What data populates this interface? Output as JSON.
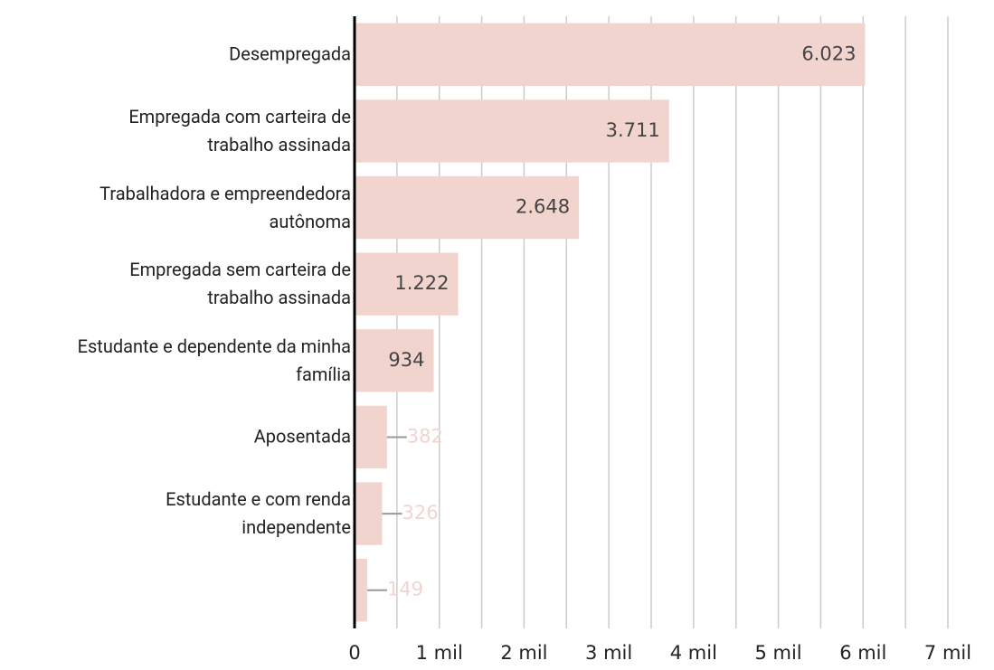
{
  "chart_data": {
    "type": "barh",
    "categories": [
      "Desempregada",
      "Empregada com carteira de\ntrabalho assinada",
      "Trabalhadora e empreendedora\nautônoma",
      "Empregada sem carteira de\ntrabalho assinada",
      "Estudante e dependente da minha\nfamília",
      "Aposentada",
      "Estudante e com renda\nindependente",
      null
    ],
    "values": [
      6023,
      3711,
      2648,
      1222,
      934,
      382,
      326,
      149
    ],
    "value_labels": [
      "6.023",
      "3.711",
      "2.648",
      "1.222",
      "934",
      "382",
      "326",
      "149"
    ],
    "color": "#f2d4cf",
    "xlim": [
      0,
      7000
    ],
    "xticks": [
      0,
      {
        "value": 1000,
        "label": "1 mil"
      },
      {
        "value": 2000,
        "label": "2 mil"
      },
      {
        "value": 3000,
        "label": "3 mil"
      },
      {
        "value": 4000,
        "label": "4 mil"
      },
      {
        "value": 5000,
        "label": "5 mil"
      },
      {
        "value": 6000,
        "label": "6 mil"
      },
      {
        "value": 7000,
        "label": "7 mil"
      }
    ],
    "minor_xticks": [
      500,
      1500,
      2500,
      3500,
      4500,
      5500,
      6500
    ],
    "grid": true
  }
}
